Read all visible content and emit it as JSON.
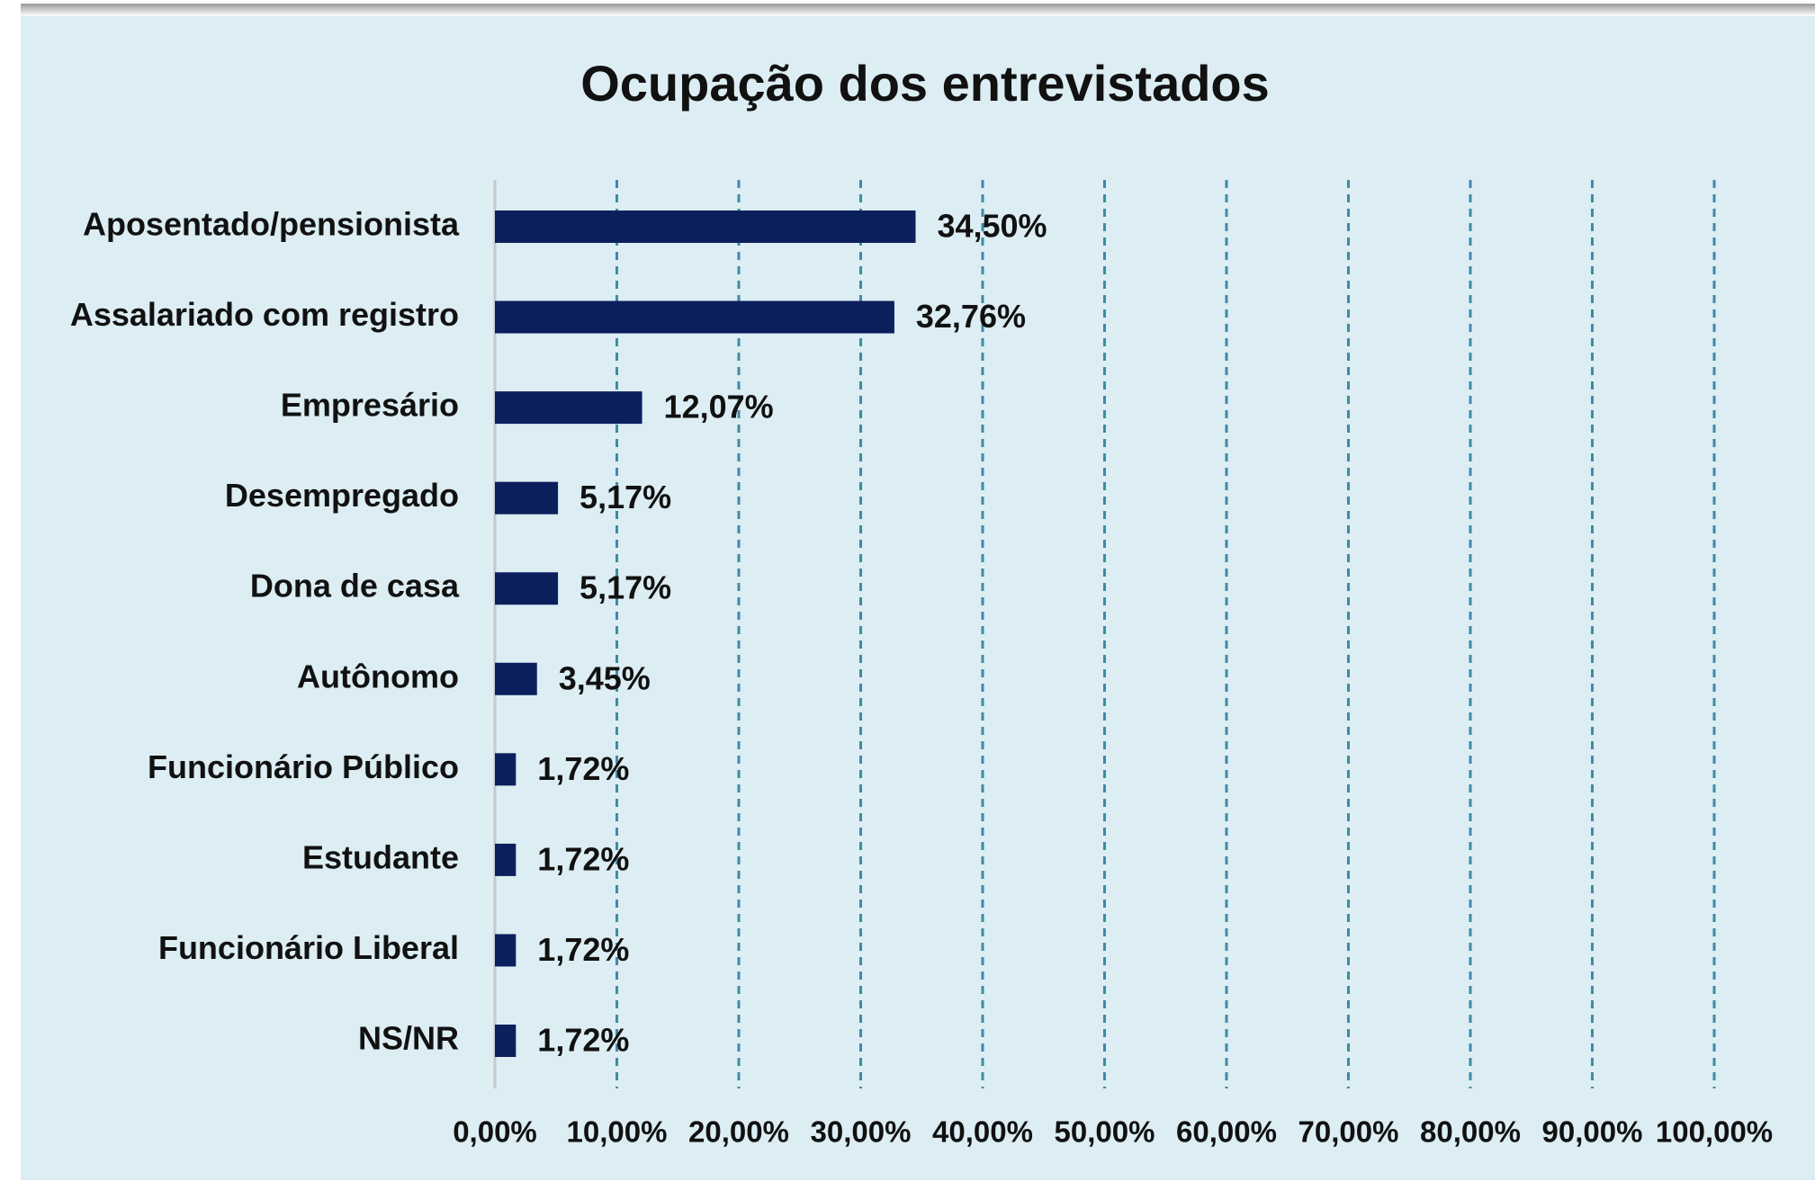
{
  "chart_data": {
    "type": "bar",
    "orientation": "horizontal",
    "title": "Ocupação dos entrevistados",
    "categories": [
      "Aposentado/pensionista",
      "Assalariado com registro",
      "Empresário",
      "Desempregado",
      "Dona de casa",
      "Autônomo",
      "Funcionário Público",
      "Estudante",
      "Funcionário Liberal",
      "NS/NR"
    ],
    "values": [
      34.5,
      32.76,
      12.07,
      5.17,
      5.17,
      3.45,
      1.72,
      1.72,
      1.72,
      1.72
    ],
    "value_labels": [
      "34,50%",
      "32,76%",
      "12,07%",
      "5,17%",
      "5,17%",
      "3,45%",
      "1,72%",
      "1,72%",
      "1,72%",
      "1,72%"
    ],
    "color": "#0b1f5c",
    "xlim": [
      0,
      100
    ],
    "xticks": [
      {
        "value": 0,
        "label": "0,00%"
      },
      {
        "value": 10,
        "label": "10,00%"
      },
      {
        "value": 20,
        "label": "20,00%"
      },
      {
        "value": 30,
        "label": "30,00%"
      },
      {
        "value": 40,
        "label": "40,00%"
      },
      {
        "value": 50,
        "label": "50,00%"
      },
      {
        "value": 60,
        "label": "60,00%"
      },
      {
        "value": 70,
        "label": "70,00%"
      },
      {
        "value": 80,
        "label": "80,00%"
      },
      {
        "value": 90,
        "label": "90,00%"
      },
      {
        "value": 100,
        "label": "100,00%"
      }
    ],
    "grid": true
  }
}
